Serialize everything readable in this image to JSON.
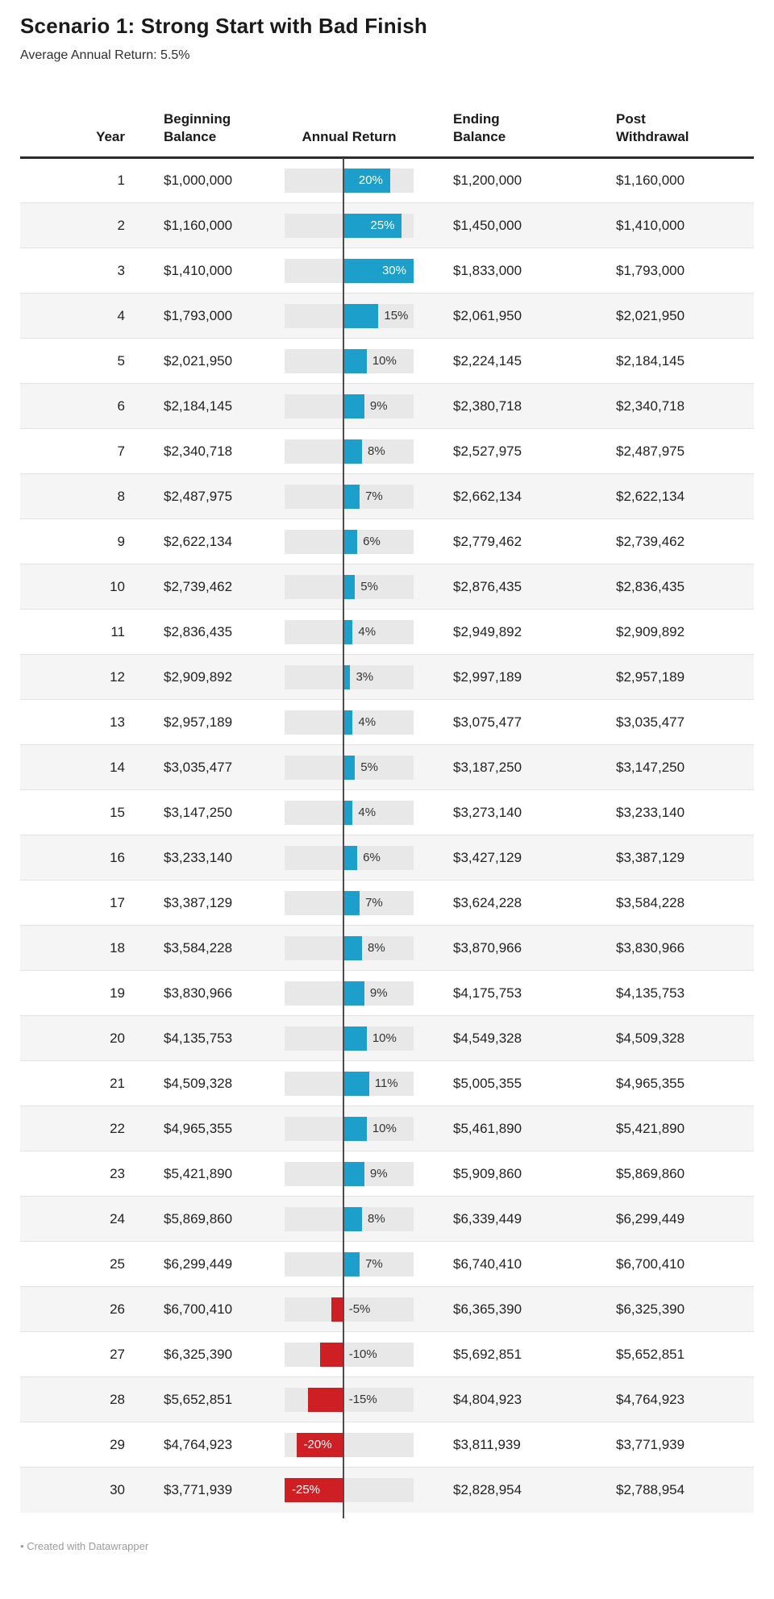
{
  "header": {
    "title": "Scenario 1: Strong Start with Bad Finish",
    "subtitle": "Average Annual Return: 5.5%"
  },
  "footer": {
    "bullet": "•",
    "text": "Created with Datawrapper"
  },
  "colors": {
    "positive_bar": "#1c9fcb",
    "negative_bar": "#ce1f24",
    "bar_track": "#e8e8e8",
    "row_stripe": "#f5f5f5",
    "header_rule": "#2b2b2b",
    "zero_line": "#4c4c4c",
    "inside_label_text": "#ffffff",
    "outside_label_text": "#333333"
  },
  "chart_data": {
    "type": "table",
    "title": "Scenario 1: Strong Start with Bad Finish",
    "subtitle": "Average Annual Return: 5.5%",
    "columns": [
      {
        "id": "year",
        "line1": "Year"
      },
      {
        "id": "beginning_balance",
        "line1": "Beginning",
        "line2": "Balance"
      },
      {
        "id": "annual_return",
        "line1": "Annual Return"
      },
      {
        "id": "ending_balance",
        "line1": "Ending",
        "line2": "Balance"
      },
      {
        "id": "post_withdrawal",
        "line1": "Post",
        "line2": "Withdrawal"
      }
    ],
    "bar_axis": {
      "min": -25,
      "max": 30,
      "unit": "%",
      "inside_label_threshold": 20
    },
    "rows": [
      {
        "year": 1,
        "beginning": "$1,000,000",
        "return_pct": 20,
        "return_label": "20%",
        "ending": "$1,200,000",
        "post": "$1,160,000"
      },
      {
        "year": 2,
        "beginning": "$1,160,000",
        "return_pct": 25,
        "return_label": "25%",
        "ending": "$1,450,000",
        "post": "$1,410,000"
      },
      {
        "year": 3,
        "beginning": "$1,410,000",
        "return_pct": 30,
        "return_label": "30%",
        "ending": "$1,833,000",
        "post": "$1,793,000"
      },
      {
        "year": 4,
        "beginning": "$1,793,000",
        "return_pct": 15,
        "return_label": "15%",
        "ending": "$2,061,950",
        "post": "$2,021,950"
      },
      {
        "year": 5,
        "beginning": "$2,021,950",
        "return_pct": 10,
        "return_label": "10%",
        "ending": "$2,224,145",
        "post": "$2,184,145"
      },
      {
        "year": 6,
        "beginning": "$2,184,145",
        "return_pct": 9,
        "return_label": "9%",
        "ending": "$2,380,718",
        "post": "$2,340,718"
      },
      {
        "year": 7,
        "beginning": "$2,340,718",
        "return_pct": 8,
        "return_label": "8%",
        "ending": "$2,527,975",
        "post": "$2,487,975"
      },
      {
        "year": 8,
        "beginning": "$2,487,975",
        "return_pct": 7,
        "return_label": "7%",
        "ending": "$2,662,134",
        "post": "$2,622,134"
      },
      {
        "year": 9,
        "beginning": "$2,622,134",
        "return_pct": 6,
        "return_label": "6%",
        "ending": "$2,779,462",
        "post": "$2,739,462"
      },
      {
        "year": 10,
        "beginning": "$2,739,462",
        "return_pct": 5,
        "return_label": "5%",
        "ending": "$2,876,435",
        "post": "$2,836,435"
      },
      {
        "year": 11,
        "beginning": "$2,836,435",
        "return_pct": 4,
        "return_label": "4%",
        "ending": "$2,949,892",
        "post": "$2,909,892"
      },
      {
        "year": 12,
        "beginning": "$2,909,892",
        "return_pct": 3,
        "return_label": "3%",
        "ending": "$2,997,189",
        "post": "$2,957,189"
      },
      {
        "year": 13,
        "beginning": "$2,957,189",
        "return_pct": 4,
        "return_label": "4%",
        "ending": "$3,075,477",
        "post": "$3,035,477"
      },
      {
        "year": 14,
        "beginning": "$3,035,477",
        "return_pct": 5,
        "return_label": "5%",
        "ending": "$3,187,250",
        "post": "$3,147,250"
      },
      {
        "year": 15,
        "beginning": "$3,147,250",
        "return_pct": 4,
        "return_label": "4%",
        "ending": "$3,273,140",
        "post": "$3,233,140"
      },
      {
        "year": 16,
        "beginning": "$3,233,140",
        "return_pct": 6,
        "return_label": "6%",
        "ending": "$3,427,129",
        "post": "$3,387,129"
      },
      {
        "year": 17,
        "beginning": "$3,387,129",
        "return_pct": 7,
        "return_label": "7%",
        "ending": "$3,624,228",
        "post": "$3,584,228"
      },
      {
        "year": 18,
        "beginning": "$3,584,228",
        "return_pct": 8,
        "return_label": "8%",
        "ending": "$3,870,966",
        "post": "$3,830,966"
      },
      {
        "year": 19,
        "beginning": "$3,830,966",
        "return_pct": 9,
        "return_label": "9%",
        "ending": "$4,175,753",
        "post": "$4,135,753"
      },
      {
        "year": 20,
        "beginning": "$4,135,753",
        "return_pct": 10,
        "return_label": "10%",
        "ending": "$4,549,328",
        "post": "$4,509,328"
      },
      {
        "year": 21,
        "beginning": "$4,509,328",
        "return_pct": 11,
        "return_label": "11%",
        "ending": "$5,005,355",
        "post": "$4,965,355"
      },
      {
        "year": 22,
        "beginning": "$4,965,355",
        "return_pct": 10,
        "return_label": "10%",
        "ending": "$5,461,890",
        "post": "$5,421,890"
      },
      {
        "year": 23,
        "beginning": "$5,421,890",
        "return_pct": 9,
        "return_label": "9%",
        "ending": "$5,909,860",
        "post": "$5,869,860"
      },
      {
        "year": 24,
        "beginning": "$5,869,860",
        "return_pct": 8,
        "return_label": "8%",
        "ending": "$6,339,449",
        "post": "$6,299,449"
      },
      {
        "year": 25,
        "beginning": "$6,299,449",
        "return_pct": 7,
        "return_label": "7%",
        "ending": "$6,740,410",
        "post": "$6,700,410"
      },
      {
        "year": 26,
        "beginning": "$6,700,410",
        "return_pct": -5,
        "return_label": "-5%",
        "ending": "$6,365,390",
        "post": "$6,325,390"
      },
      {
        "year": 27,
        "beginning": "$6,325,390",
        "return_pct": -10,
        "return_label": "-10%",
        "ending": "$5,692,851",
        "post": "$5,652,851"
      },
      {
        "year": 28,
        "beginning": "$5,652,851",
        "return_pct": -15,
        "return_label": "-15%",
        "ending": "$4,804,923",
        "post": "$4,764,923"
      },
      {
        "year": 29,
        "beginning": "$4,764,923",
        "return_pct": -20,
        "return_label": "-20%",
        "ending": "$3,811,939",
        "post": "$3,771,939"
      },
      {
        "year": 30,
        "beginning": "$3,771,939",
        "return_pct": -25,
        "return_label": "-25%",
        "ending": "$2,828,954",
        "post": "$2,788,954"
      }
    ]
  }
}
